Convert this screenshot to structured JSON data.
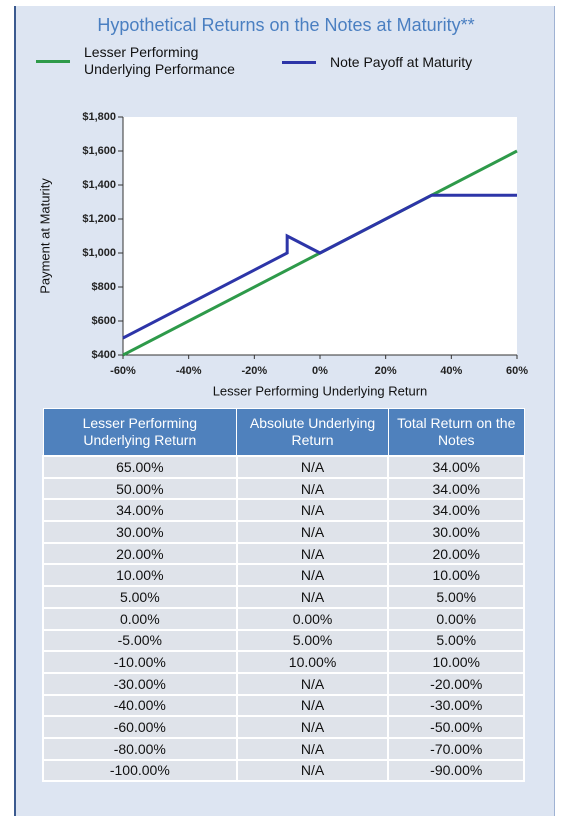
{
  "chart_data": {
    "type": "line",
    "title": "Hypothetical Returns on the Notes at Maturity**",
    "x_label": "Lesser Performing Underlying Return",
    "y_label": "Payment at Maturity",
    "xlim": [
      -60,
      60
    ],
    "xticks": [
      {
        "value": -60,
        "label": "-60%"
      },
      {
        "value": -40,
        "label": "-40%"
      },
      {
        "value": -20,
        "label": "-20%"
      },
      {
        "value": 0,
        "label": "0%"
      },
      {
        "value": 20,
        "label": "20%"
      },
      {
        "value": 40,
        "label": "40%"
      },
      {
        "value": 60,
        "label": "60%"
      }
    ],
    "ylim": [
      400,
      1800
    ],
    "yticks": [
      {
        "value": 400,
        "label": "$400"
      },
      {
        "value": 600,
        "label": "$600"
      },
      {
        "value": 800,
        "label": "$800"
      },
      {
        "value": 1000,
        "label": "$1,000"
      },
      {
        "value": 1200,
        "label": "$1,200"
      },
      {
        "value": 1400,
        "label": "$1,400"
      },
      {
        "value": 1600,
        "label": "$1,600"
      },
      {
        "value": 1800,
        "label": "$1,800"
      }
    ],
    "series": [
      {
        "name": "Lesser Performing Underlying Performance",
        "color": "#2e9a4a",
        "x": [
          -60,
          60
        ],
        "values": [
          400,
          1600
        ]
      },
      {
        "name": "Note Payoff at Maturity",
        "color": "#2d35a8",
        "x": [
          -60,
          -10,
          -10,
          0,
          34,
          60
        ],
        "values": [
          500,
          1000,
          1100,
          1000,
          1340,
          1340
        ]
      }
    ]
  },
  "table": {
    "headers": [
      "Lesser Performing Underlying Return",
      "Absolute Underlying Return",
      "Total Return on the Notes"
    ],
    "rows": [
      [
        "65.00%",
        "N/A",
        "34.00%"
      ],
      [
        "50.00%",
        "N/A",
        "34.00%"
      ],
      [
        "34.00%",
        "N/A",
        "34.00%"
      ],
      [
        "30.00%",
        "N/A",
        "30.00%"
      ],
      [
        "20.00%",
        "N/A",
        "20.00%"
      ],
      [
        "10.00%",
        "N/A",
        "10.00%"
      ],
      [
        "5.00%",
        "N/A",
        "5.00%"
      ],
      [
        "0.00%",
        "0.00%",
        "0.00%"
      ],
      [
        "-5.00%",
        "5.00%",
        "5.00%"
      ],
      [
        "-10.00%",
        "10.00%",
        "10.00%"
      ],
      [
        "-30.00%",
        "N/A",
        "-20.00%"
      ],
      [
        "-40.00%",
        "N/A",
        "-30.00%"
      ],
      [
        "-60.00%",
        "N/A",
        "-50.00%"
      ],
      [
        "-80.00%",
        "N/A",
        "-70.00%"
      ],
      [
        "-100.00%",
        "N/A",
        "-90.00%"
      ]
    ]
  }
}
